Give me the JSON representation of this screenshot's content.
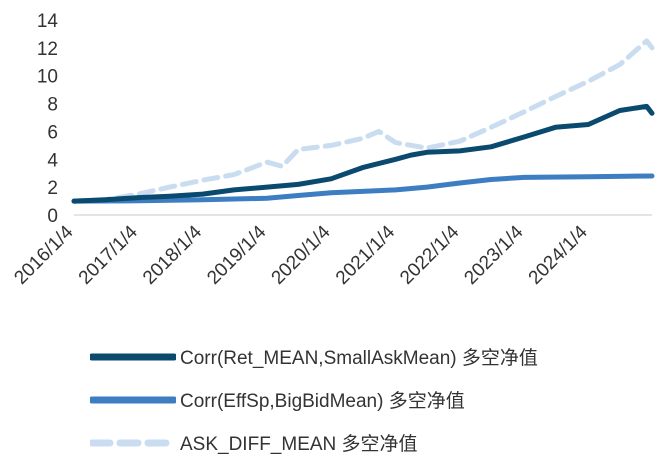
{
  "chart_data": {
    "type": "line",
    "title": "",
    "xlabel": "",
    "ylabel": "",
    "ylim": [
      0,
      14
    ],
    "yticks": [
      "0",
      "2",
      "4",
      "6",
      "8",
      "10",
      "12",
      "14"
    ],
    "xticks": [
      "2016/1/4",
      "2017/1/4",
      "2018/1/4",
      "2019/1/4",
      "2020/1/4",
      "2021/1/4",
      "2022/1/4",
      "2023/1/4",
      "2024/1/4"
    ],
    "x_range": [
      "2016/1/4",
      "2024/12/31"
    ],
    "grid": false,
    "legend_position": "bottom",
    "series": [
      {
        "name": "Corr(Ret_MEAN,SmallAskMean) 多空净值",
        "color": "#0b4a6f",
        "style": "solid",
        "points": [
          [
            "2016/1/4",
            1.0
          ],
          [
            "2016/7/1",
            1.1
          ],
          [
            "2017/1/4",
            1.25
          ],
          [
            "2017/7/1",
            1.35
          ],
          [
            "2018/1/4",
            1.5
          ],
          [
            "2018/7/1",
            1.8
          ],
          [
            "2019/1/4",
            2.0
          ],
          [
            "2019/7/1",
            2.2
          ],
          [
            "2020/1/4",
            2.6
          ],
          [
            "2020/7/1",
            3.4
          ],
          [
            "2021/1/4",
            4.0
          ],
          [
            "2021/4/1",
            4.3
          ],
          [
            "2021/7/1",
            4.5
          ],
          [
            "2022/1/4",
            4.6
          ],
          [
            "2022/7/1",
            4.9
          ],
          [
            "2023/1/4",
            5.6
          ],
          [
            "2023/7/1",
            6.3
          ],
          [
            "2024/1/4",
            6.5
          ],
          [
            "2024/7/1",
            7.5
          ],
          [
            "2024/12/1",
            7.8
          ],
          [
            "2024/12/31",
            7.3
          ]
        ]
      },
      {
        "name": "Corr(EffSp,BigBidMean) 多空净值",
        "color": "#3d7dc1",
        "style": "solid",
        "points": [
          [
            "2016/1/4",
            1.0
          ],
          [
            "2017/1/4",
            1.02
          ],
          [
            "2018/1/4",
            1.1
          ],
          [
            "2019/1/4",
            1.2
          ],
          [
            "2019/7/1",
            1.4
          ],
          [
            "2020/1/4",
            1.6
          ],
          [
            "2021/1/4",
            1.8
          ],
          [
            "2021/7/1",
            2.0
          ],
          [
            "2022/1/4",
            2.3
          ],
          [
            "2022/7/1",
            2.55
          ],
          [
            "2023/1/4",
            2.7
          ],
          [
            "2024/1/4",
            2.75
          ],
          [
            "2024/12/31",
            2.8
          ]
        ]
      },
      {
        "name": "ASK_DIFF_MEAN 多空净值",
        "color": "#c9dcf0",
        "style": "dashed",
        "points": [
          [
            "2016/1/4",
            1.0
          ],
          [
            "2016/7/1",
            1.1
          ],
          [
            "2017/1/4",
            1.5
          ],
          [
            "2017/7/1",
            2.0
          ],
          [
            "2018/1/4",
            2.5
          ],
          [
            "2018/7/1",
            2.9
          ],
          [
            "2019/1/4",
            3.8
          ],
          [
            "2019/4/1",
            3.5
          ],
          [
            "2019/7/1",
            4.7
          ],
          [
            "2020/1/4",
            5.0
          ],
          [
            "2020/7/1",
            5.5
          ],
          [
            "2020/10/1",
            6.0
          ],
          [
            "2021/1/4",
            5.2
          ],
          [
            "2021/7/1",
            4.8
          ],
          [
            "2022/1/4",
            5.3
          ],
          [
            "2022/7/1",
            6.3
          ],
          [
            "2023/1/4",
            7.4
          ],
          [
            "2023/7/1",
            8.5
          ],
          [
            "2024/1/4",
            9.6
          ],
          [
            "2024/7/1",
            10.8
          ],
          [
            "2024/12/1",
            12.5
          ],
          [
            "2024/12/31",
            12.0
          ]
        ]
      }
    ]
  }
}
